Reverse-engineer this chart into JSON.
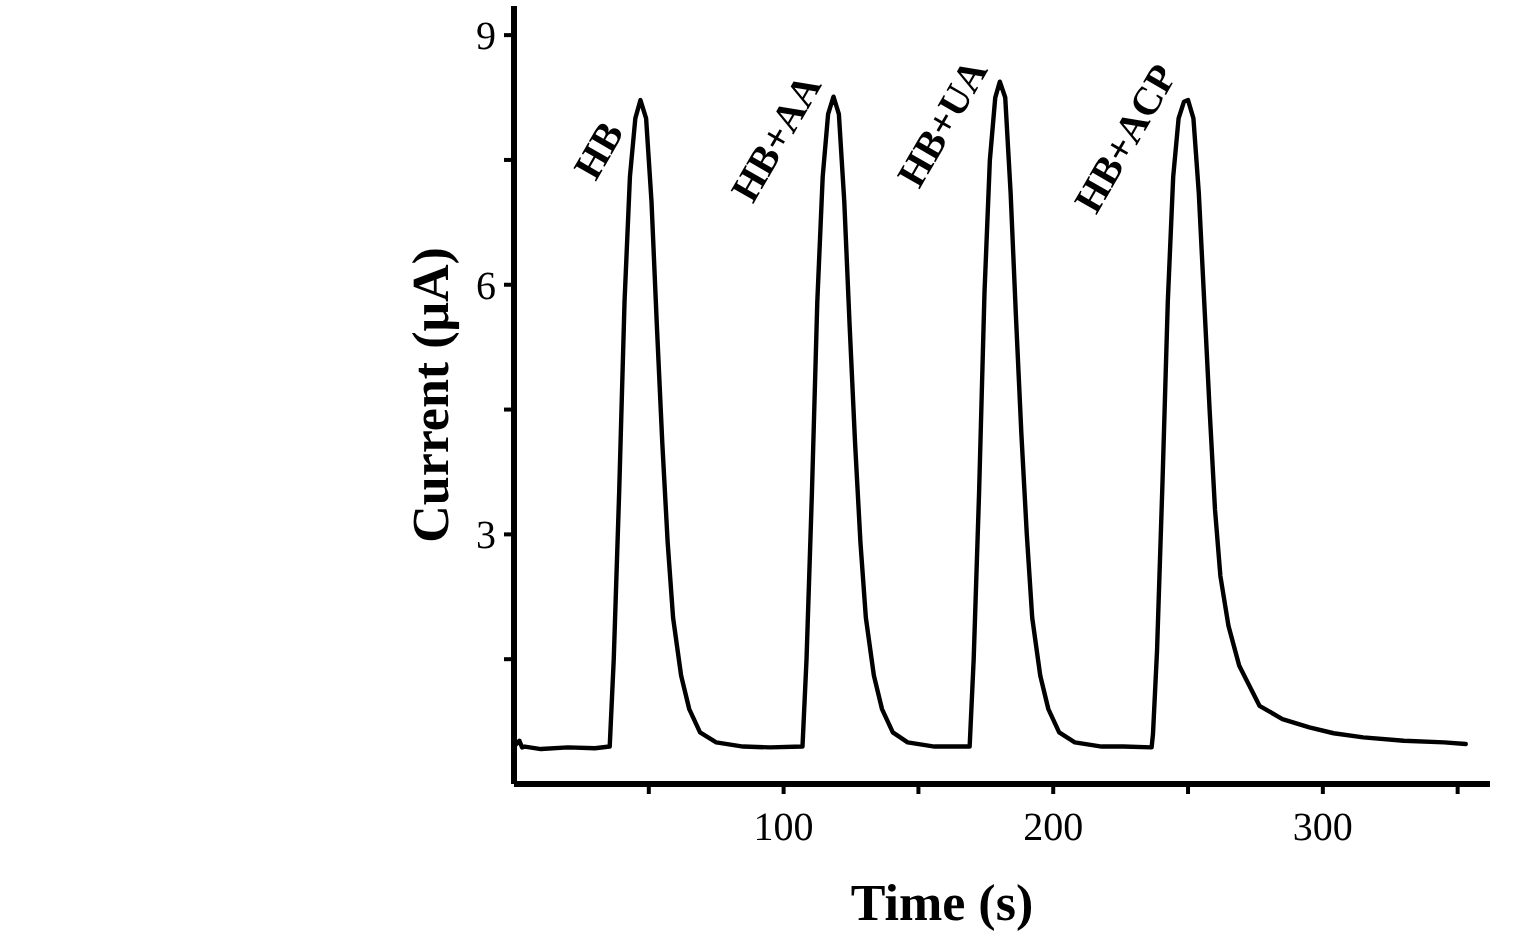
{
  "chart_data": {
    "type": "line",
    "xlabel": "Time (s)",
    "ylabel": "Current (μA)",
    "xlim": [
      0,
      362
    ],
    "ylim": [
      0,
      9.35
    ],
    "xticks": [
      {
        "value": 50,
        "label": null
      },
      100,
      {
        "value": 150,
        "label": null
      },
      200,
      {
        "value": 250,
        "label": null
      },
      300,
      {
        "value": 350,
        "label": null
      }
    ],
    "yticks": [
      {
        "value": 1.5,
        "label": null
      },
      3,
      {
        "value": 4.5,
        "label": null
      },
      6,
      {
        "value": 7.5,
        "label": null
      },
      9
    ],
    "grid": false,
    "marker": "none",
    "line_style": "solid",
    "series": [
      {
        "color": "#000000",
        "x": [
          0,
          2,
          3,
          4,
          10,
          20,
          30,
          35.5,
          37,
          39,
          41,
          43,
          45,
          46.9,
          49,
          51,
          53,
          55,
          57,
          59,
          62,
          65,
          69,
          75,
          85,
          95,
          107,
          108.5,
          110.5,
          112.5,
          114.5,
          116.5,
          118.5,
          120.5,
          122.5,
          124.5,
          126.5,
          128.5,
          130.5,
          133.5,
          136.5,
          140.5,
          146,
          156,
          169,
          170.5,
          172.5,
          174.5,
          176.5,
          178.5,
          180.2,
          182.2,
          184.2,
          186.2,
          188.2,
          190.2,
          192.2,
          195.2,
          198.2,
          202.2,
          208,
          218,
          226,
          236.5,
          237,
          238.5,
          240.5,
          242.5,
          244.5,
          246.5,
          248.5,
          250,
          252,
          254,
          256,
          258,
          260,
          262,
          265,
          269,
          276.5,
          285,
          295,
          304,
          315,
          330,
          345,
          353
        ],
        "values": [
          0.45,
          0.52,
          0.44,
          0.45,
          0.42,
          0.44,
          0.43,
          0.45,
          1.5,
          3.5,
          5.8,
          7.3,
          8.0,
          8.22,
          8.0,
          7.0,
          5.5,
          4.1,
          2.9,
          2.0,
          1.3,
          0.9,
          0.62,
          0.5,
          0.45,
          0.44,
          0.45,
          1.5,
          3.5,
          5.8,
          7.3,
          8.05,
          8.26,
          8.05,
          7.0,
          5.5,
          4.1,
          2.9,
          2.0,
          1.3,
          0.9,
          0.62,
          0.5,
          0.45,
          0.45,
          1.5,
          3.5,
          5.9,
          7.5,
          8.25,
          8.44,
          8.25,
          7.1,
          5.6,
          4.2,
          3.0,
          2.0,
          1.3,
          0.9,
          0.62,
          0.5,
          0.45,
          0.45,
          0.44,
          0.6,
          1.6,
          3.6,
          5.8,
          7.3,
          8.0,
          8.2,
          8.22,
          8.0,
          7.1,
          5.8,
          4.5,
          3.3,
          2.5,
          1.9,
          1.42,
          0.94,
          0.78,
          0.68,
          0.61,
          0.56,
          0.52,
          0.5,
          0.48
        ]
      }
    ],
    "annotations": [
      "HB",
      "HB+AA",
      "HB+UA",
      "HB+ACP"
    ]
  }
}
